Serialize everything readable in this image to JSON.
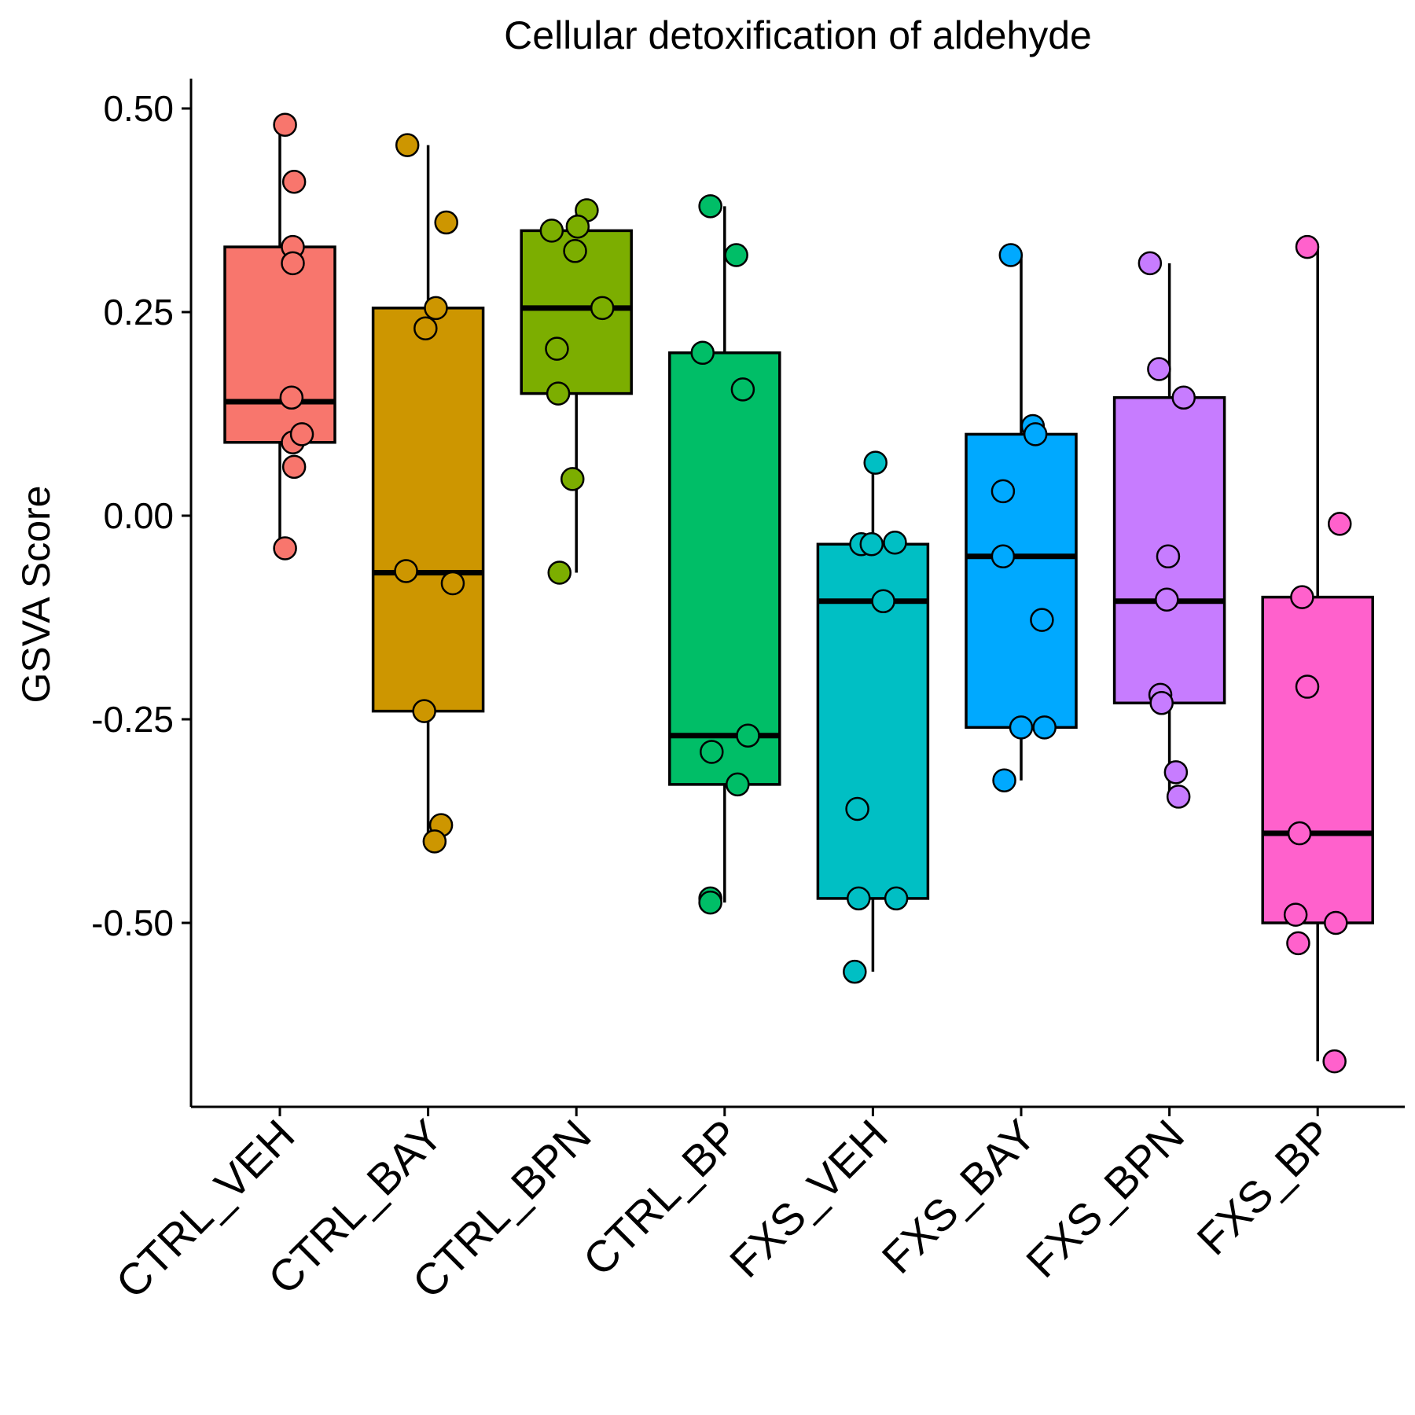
{
  "chart_data": {
    "type": "box",
    "title": "Cellular detoxification of aldehyde",
    "xlabel": "",
    "ylabel": "GSVA Score",
    "ylim": [
      -0.72,
      0.54
    ],
    "yticks": [
      0.5,
      0.25,
      0.0,
      -0.25,
      -0.5
    ],
    "ytick_labels": [
      "0.50",
      "0.25",
      "0.00",
      "-0.25",
      "-0.50"
    ],
    "grid": false,
    "legend": "none",
    "categories": [
      "CTRL_VEH",
      "CTRL_BAY",
      "CTRL_BPN",
      "CTRL_BP",
      "FXS_VEH",
      "FXS_BAY",
      "FXS_BPN",
      "FXS_BP"
    ],
    "colors": [
      "#F8766D",
      "#CD9600",
      "#7CAE00",
      "#00BE67",
      "#00BFC4",
      "#00A9FF",
      "#C77CFF",
      "#FF61CC"
    ],
    "boxes": [
      {
        "whisker_low": -0.04,
        "q1": 0.09,
        "median": 0.14,
        "q3": 0.33,
        "whisker_high": 0.47
      },
      {
        "whisker_low": -0.4,
        "q1": -0.24,
        "median": -0.07,
        "q3": 0.255,
        "whisker_high": 0.455
      },
      {
        "whisker_low": -0.07,
        "q1": 0.15,
        "median": 0.255,
        "q3": 0.35,
        "whisker_high": 0.37
      },
      {
        "whisker_low": -0.475,
        "q1": -0.33,
        "median": -0.27,
        "q3": 0.2,
        "whisker_high": 0.38
      },
      {
        "whisker_low": -0.56,
        "q1": -0.47,
        "median": -0.105,
        "q3": -0.035,
        "whisker_high": 0.065
      },
      {
        "whisker_low": -0.325,
        "q1": -0.26,
        "median": -0.05,
        "q3": 0.1,
        "whisker_high": 0.32
      },
      {
        "whisker_low": -0.345,
        "q1": -0.23,
        "median": -0.105,
        "q3": 0.145,
        "whisker_high": 0.31
      },
      {
        "whisker_low": -0.67,
        "q1": -0.5,
        "median": -0.39,
        "q3": -0.1,
        "whisker_high": 0.33
      }
    ],
    "points": [
      {
        "x": [
          0.04,
          0.11,
          0.1,
          0.1,
          0.09,
          0.1,
          0.17,
          0.11,
          0.04
        ],
        "y": [
          0.48,
          0.41,
          0.33,
          0.31,
          0.145,
          0.09,
          0.1,
          0.06,
          -0.04
        ]
      },
      {
        "x": [
          -0.16,
          0.14,
          0.06,
          -0.02,
          -0.17,
          0.19,
          -0.03,
          0.1,
          0.05
        ],
        "y": [
          0.455,
          0.36,
          0.255,
          0.23,
          -0.068,
          -0.083,
          -0.24,
          -0.38,
          -0.4
        ]
      },
      {
        "x": [
          0.08,
          -0.19,
          0.01,
          -0.01,
          0.2,
          -0.15,
          -0.14,
          -0.03,
          -0.13
        ],
        "y": [
          0.375,
          0.35,
          0.355,
          0.325,
          0.255,
          0.205,
          0.15,
          0.045,
          -0.07
        ]
      },
      {
        "x": [
          -0.11,
          0.09,
          -0.17,
          0.14,
          0.18,
          -0.1,
          0.1,
          -0.11,
          -0.11
        ],
        "y": [
          0.38,
          0.32,
          0.2,
          0.155,
          -0.27,
          -0.29,
          -0.33,
          -0.47,
          -0.475
        ]
      },
      {
        "x": [
          0.02,
          -0.09,
          -0.01,
          0.17,
          0.08,
          -0.12,
          -0.11,
          0.18,
          -0.14
        ],
        "y": [
          0.065,
          -0.035,
          -0.035,
          -0.033,
          -0.105,
          -0.36,
          -0.47,
          -0.47,
          -0.56
        ]
      },
      {
        "x": [
          -0.08,
          0.09,
          0.11,
          -0.14,
          -0.14,
          0.16,
          0.0,
          0.18,
          -0.13
        ],
        "y": [
          0.32,
          0.11,
          0.1,
          0.03,
          -0.05,
          -0.128,
          -0.26,
          -0.26,
          -0.325
        ]
      },
      {
        "x": [
          -0.15,
          -0.08,
          0.11,
          -0.01,
          -0.02,
          -0.07,
          -0.06,
          0.05,
          0.07
        ],
        "y": [
          0.31,
          0.18,
          0.145,
          -0.05,
          -0.103,
          -0.22,
          -0.23,
          -0.315,
          -0.345
        ]
      },
      {
        "x": [
          -0.08,
          0.17,
          -0.12,
          -0.08,
          -0.14,
          -0.17,
          0.14,
          -0.15,
          0.13
        ],
        "y": [
          0.33,
          -0.01,
          -0.1,
          -0.21,
          -0.39,
          -0.49,
          -0.5,
          -0.525,
          -0.67
        ]
      }
    ]
  }
}
